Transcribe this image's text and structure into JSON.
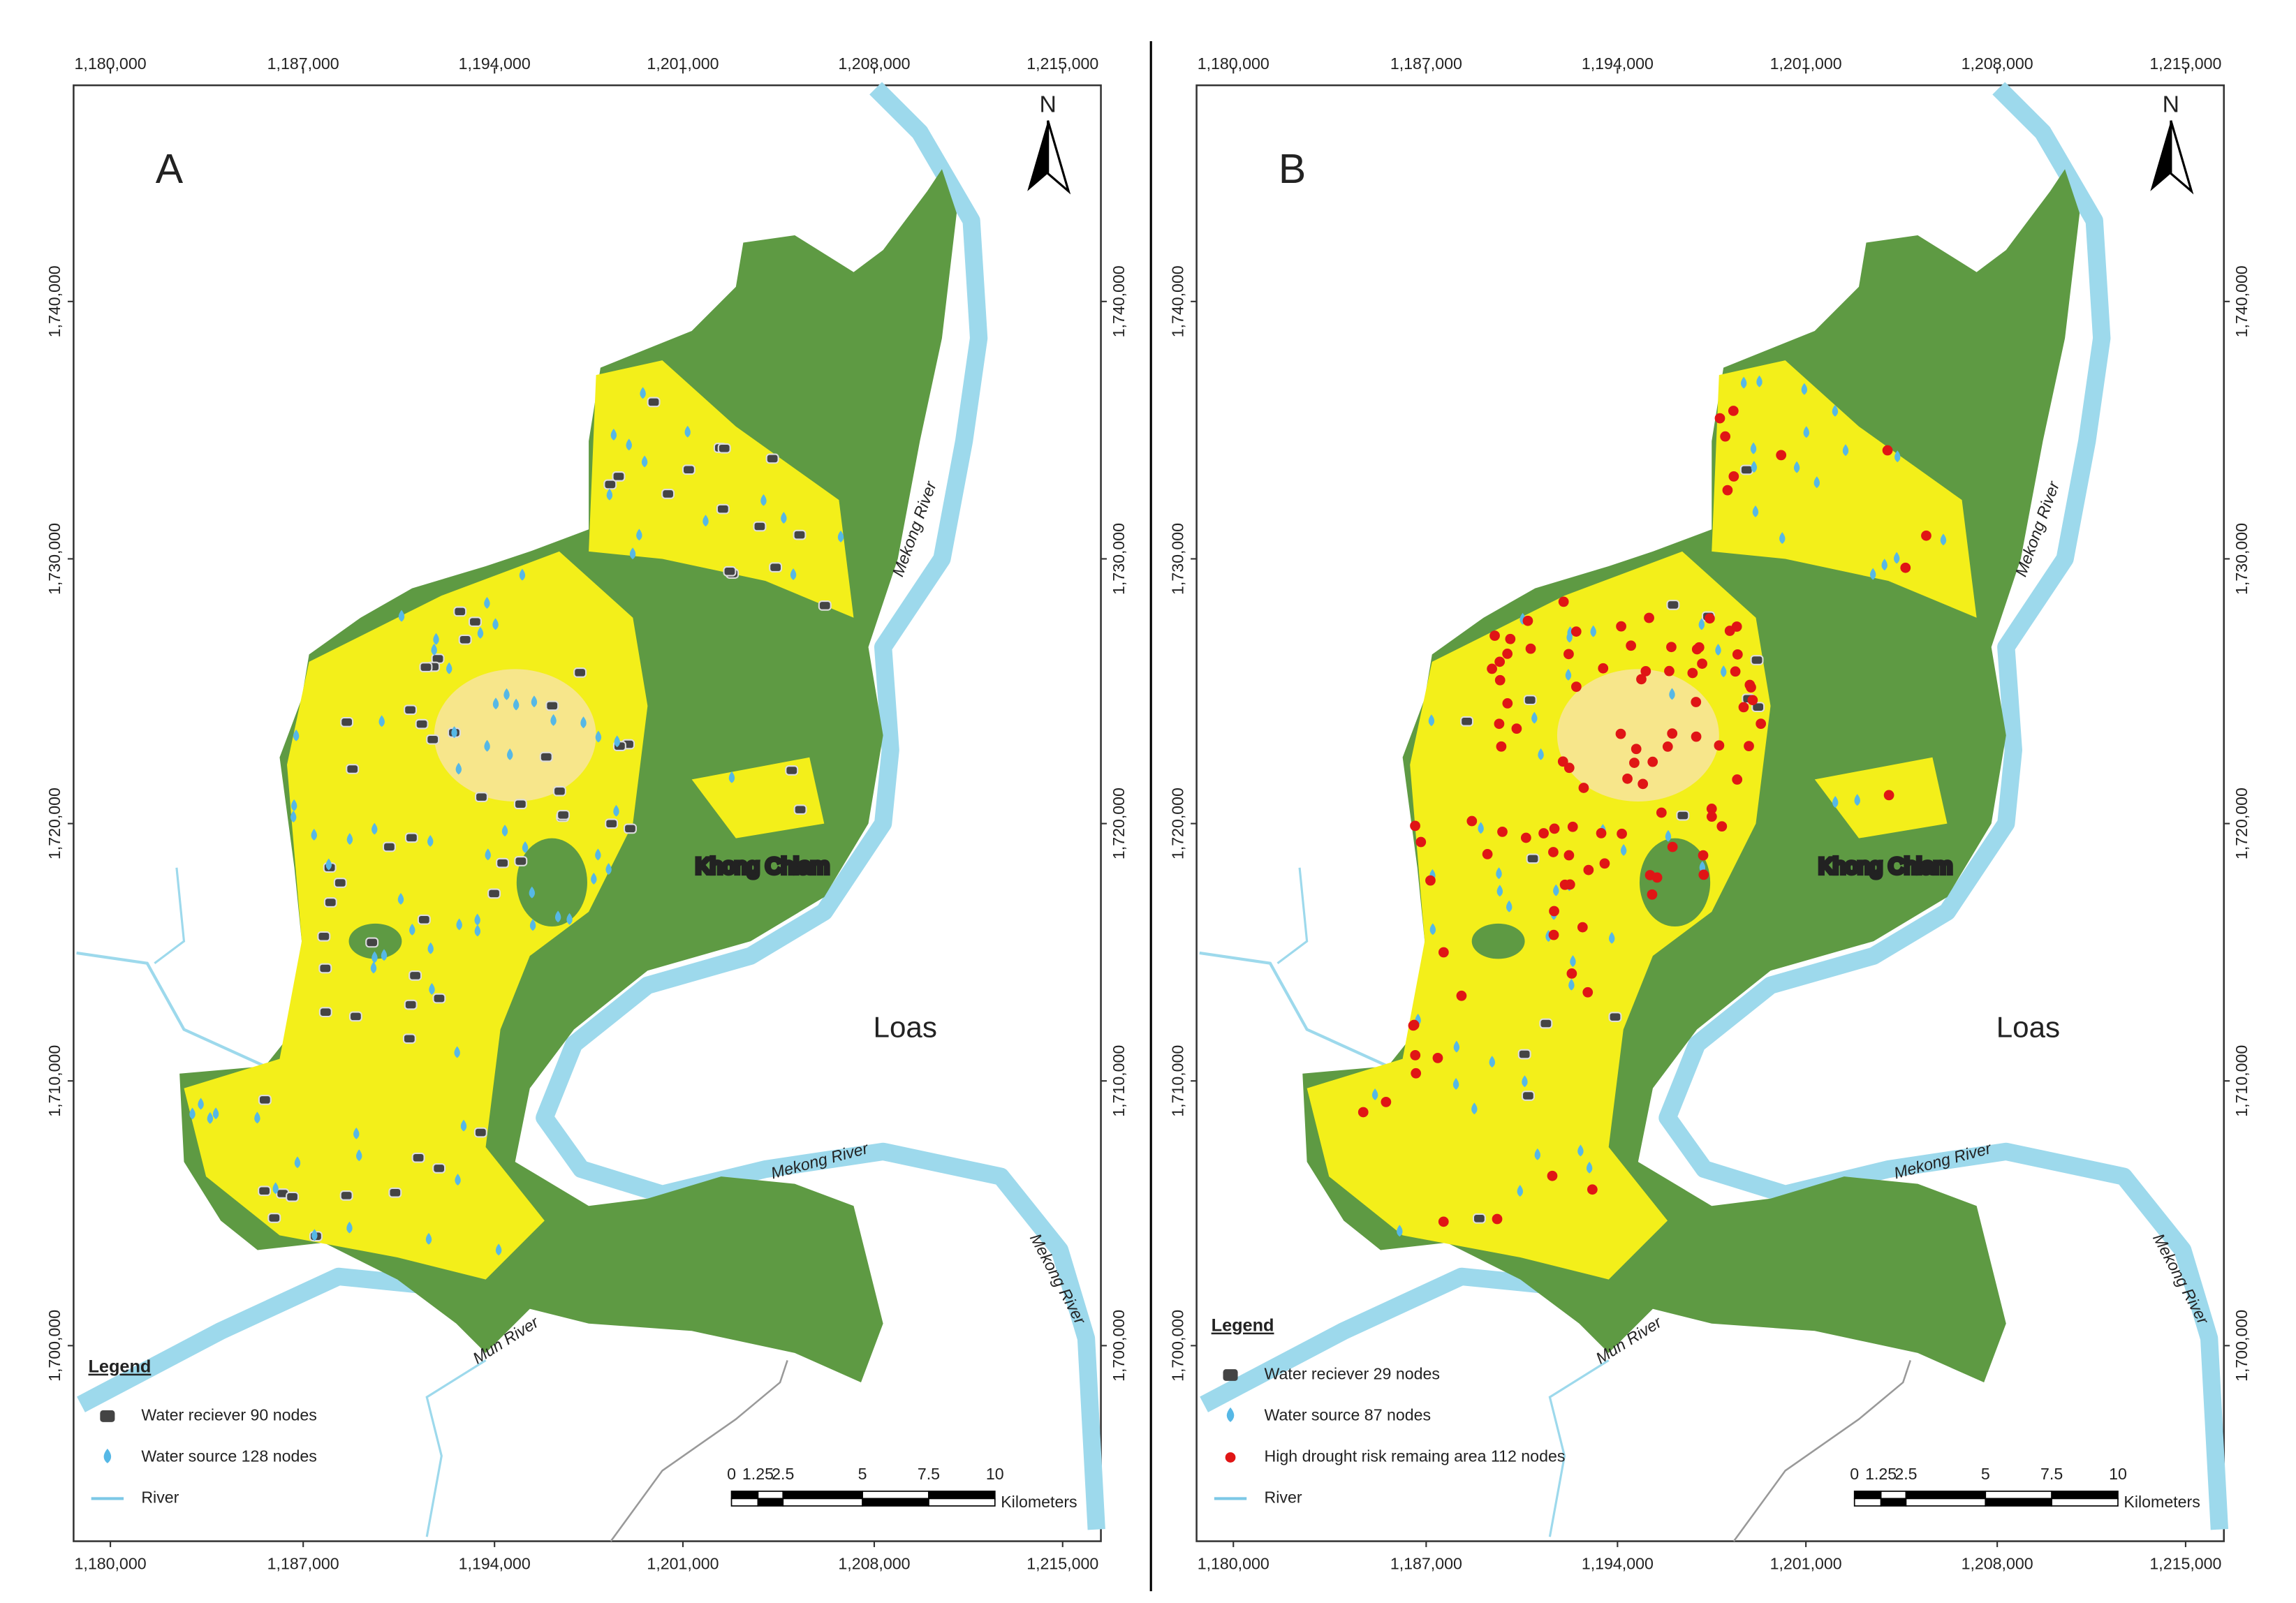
{
  "panels": [
    {
      "label": "A",
      "north": "N",
      "x_ticks": [
        "1,180,000",
        "1,187,000",
        "1,194,000",
        "1,201,000",
        "1,208,000",
        "1,215,000"
      ],
      "y_ticks": [
        "1,700,000",
        "1,710,000",
        "1,720,000",
        "1,730,000",
        "1,740,000"
      ],
      "places": [
        "Khong Chiam",
        "Loas",
        "Mekong River",
        "Mekong River",
        "Mekong River",
        "Mun River"
      ],
      "legend": {
        "title": "Legend",
        "items": [
          "Water reciever  90 nodes",
          "Water source 128 nodes",
          "River"
        ]
      },
      "scale": {
        "ticks": [
          "0",
          "1.25",
          "2.5",
          "5",
          "7.5",
          "10"
        ],
        "unit": "Kilometers"
      }
    },
    {
      "label": "B",
      "north": "N",
      "x_ticks": [
        "1,180,000",
        "1,187,000",
        "1,194,000",
        "1,201,000",
        "1,208,000",
        "1,215,000"
      ],
      "y_ticks": [
        "1,700,000",
        "1,710,000",
        "1,720,000",
        "1,730,000",
        "1,740,000"
      ],
      "places": [
        "Khong Chiam",
        "Loas",
        "Mekong River",
        "Mekong River",
        "Mekong River",
        "Mun River"
      ],
      "legend": {
        "title": "Legend",
        "items": [
          "Water reciever  29 nodes",
          "Water source 87 nodes",
          "High drought risk remaing area 112 nodes",
          "River"
        ]
      },
      "scale": {
        "ticks": [
          "0",
          "1.25",
          "2.5",
          "5",
          "7.5",
          "10"
        ],
        "unit": "Kilometers"
      }
    }
  ]
}
